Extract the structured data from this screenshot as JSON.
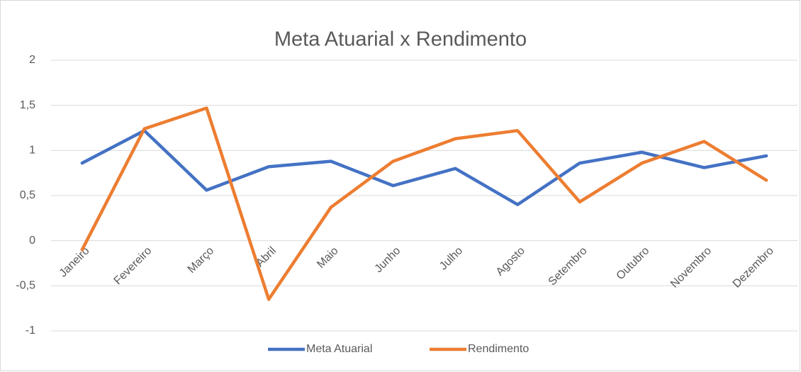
{
  "chart_data": {
    "type": "line",
    "title": "Meta Atuarial x Rendimento",
    "categories": [
      "Janeiro",
      "Fevereiro",
      "Março",
      "Abril",
      "Maio",
      "Junho",
      "Julho",
      "Agosto",
      "Setembro",
      "Outubro",
      "Novembro",
      "Dezembro"
    ],
    "series": [
      {
        "name": "Meta Atuarial",
        "color": "#4472c4",
        "values": [
          0.86,
          1.22,
          0.56,
          0.82,
          0.88,
          0.61,
          0.8,
          0.4,
          0.86,
          0.98,
          0.81,
          0.94
        ]
      },
      {
        "name": "Rendimento",
        "color": "#ed7d31",
        "values": [
          -0.1,
          1.24,
          1.47,
          -0.65,
          0.37,
          0.88,
          1.13,
          1.22,
          0.43,
          0.86,
          1.1,
          0.67
        ]
      }
    ],
    "ylim": [
      -1,
      2
    ],
    "yticks": [
      -1,
      {
        "value": -0.5,
        "label": "-0,5"
      },
      0,
      {
        "value": 0.5,
        "label": "0,5"
      },
      1,
      {
        "value": 1.5,
        "label": "1,5"
      },
      2
    ],
    "grid": true,
    "legend": "bottom"
  }
}
